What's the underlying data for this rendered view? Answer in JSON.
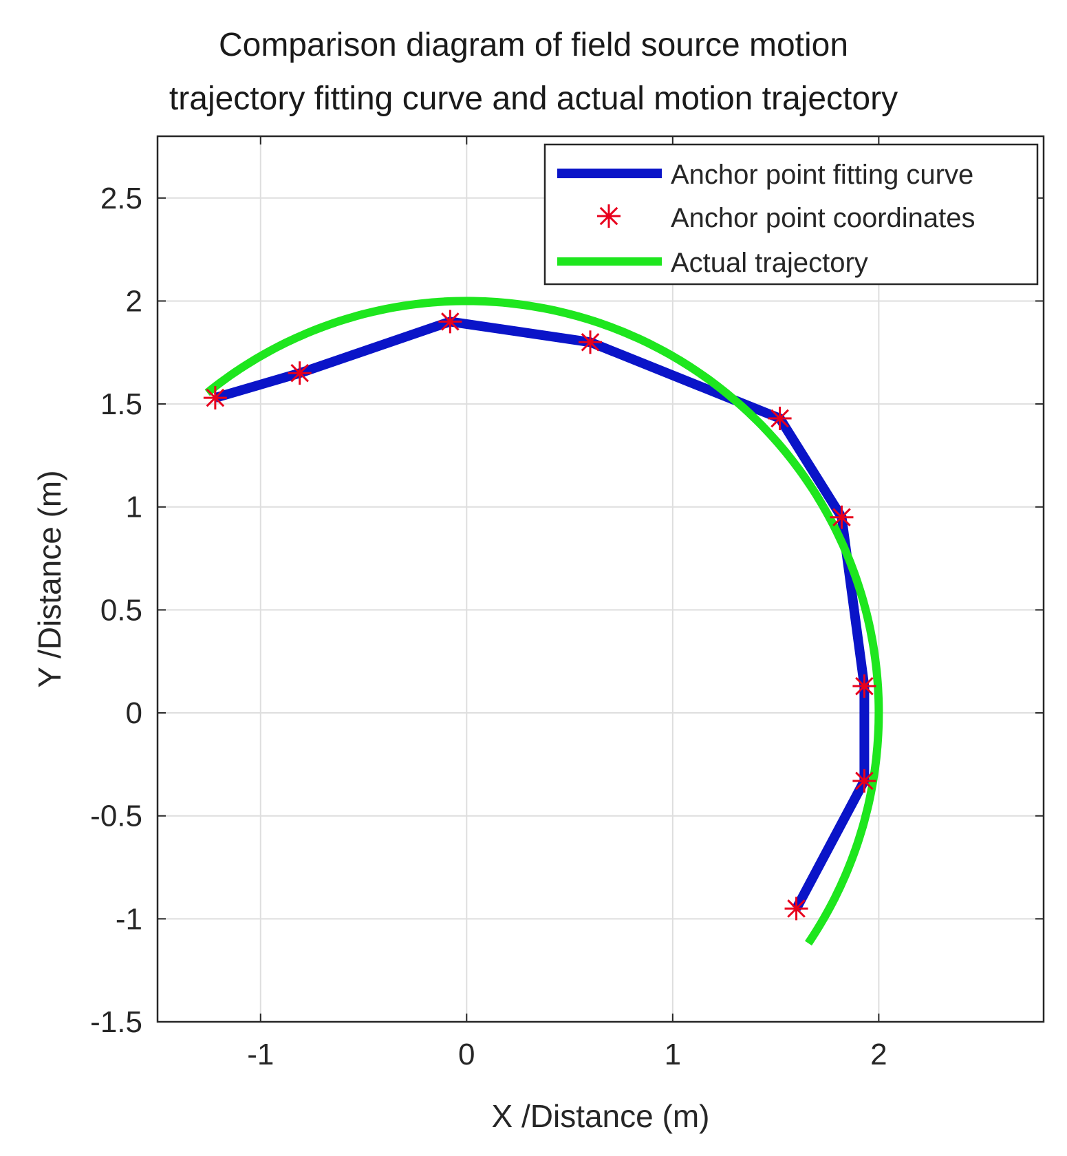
{
  "chart_data": {
    "type": "line",
    "title": [
      "Comparison diagram of field source motion",
      "trajectory fitting curve and actual motion trajectory"
    ],
    "xlabel": "X /Distance (m)",
    "ylabel": "Y /Distance (m)",
    "xlim": [
      -1.5,
      2.8
    ],
    "ylim": [
      -1.5,
      2.8
    ],
    "xticks": [
      -1,
      0,
      1,
      2
    ],
    "xtick_labels": [
      "-1",
      "0",
      "1",
      "2"
    ],
    "yticks": [
      -1.5,
      -1,
      -0.5,
      0,
      0.5,
      1,
      1.5,
      2,
      2.5
    ],
    "ytick_labels": [
      "-1.5",
      "-1",
      "-0.5",
      "0",
      "0.5",
      "1",
      "1.5",
      "2",
      "2.5"
    ],
    "grid": true,
    "legend_position": "top-right",
    "series": [
      {
        "name": "Anchor point fitting curve",
        "style": "line",
        "color": "#0a14c8",
        "points": [
          [
            -1.22,
            1.53
          ],
          [
            -0.81,
            1.65
          ],
          [
            -0.08,
            1.9
          ],
          [
            0.6,
            1.8
          ],
          [
            1.52,
            1.43
          ],
          [
            1.82,
            0.95
          ],
          [
            1.93,
            0.13
          ],
          [
            1.93,
            -0.33
          ],
          [
            1.6,
            -0.95
          ]
        ]
      },
      {
        "name": "Anchor point coordinates",
        "style": "marker",
        "marker": "*",
        "color": "#e8001c",
        "points": [
          [
            -1.22,
            1.53
          ],
          [
            -0.81,
            1.65
          ],
          [
            -0.08,
            1.9
          ],
          [
            0.6,
            1.8
          ],
          [
            1.52,
            1.43
          ],
          [
            1.82,
            0.95
          ],
          [
            1.93,
            0.13
          ],
          [
            1.93,
            -0.33
          ],
          [
            1.6,
            -0.95
          ]
        ]
      },
      {
        "name": "Actual trajectory",
        "style": "line",
        "color": "#1ee61e",
        "arc": {
          "radius": 2.0,
          "start_deg": 129,
          "end_deg": -34
        }
      }
    ]
  }
}
